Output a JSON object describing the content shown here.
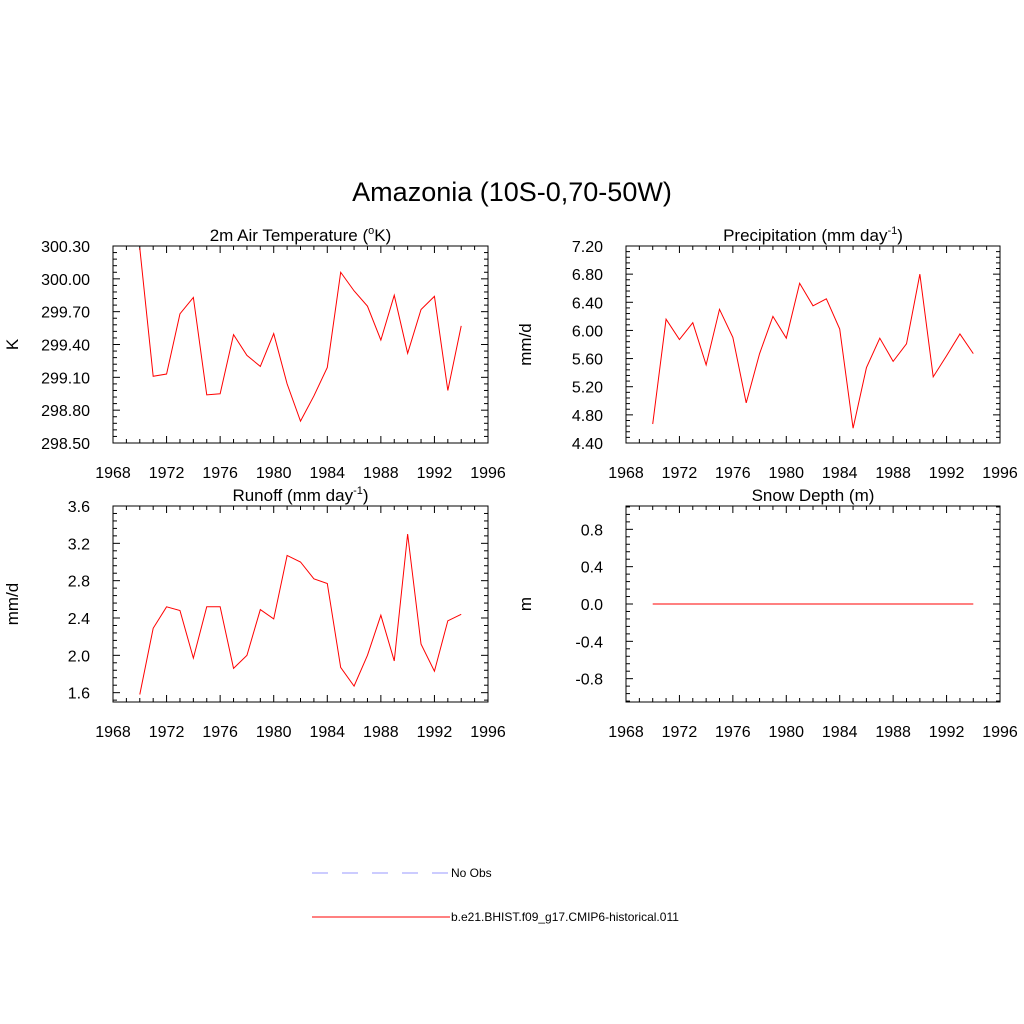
{
  "figure": {
    "title": "Amazonia (10S-0,70-50W)"
  },
  "colors": {
    "model_line": "#ff0000",
    "obs_line": "#9999ff",
    "axis": "#000000"
  },
  "chart_data": [
    {
      "type": "line",
      "title": "2m Air Temperature",
      "title_unit_parts": [
        "(",
        "o",
        "K)"
      ],
      "ylabel": "K",
      "xlim": [
        1968,
        1996
      ],
      "ylim": [
        298.5,
        300.3
      ],
      "xticks": [
        1968,
        1972,
        1976,
        1980,
        1984,
        1988,
        1992,
        1996
      ],
      "yticks": [
        "298.50",
        "298.80",
        "299.10",
        "299.40",
        "299.70",
        "300.00",
        "300.30"
      ],
      "series": [
        {
          "name": "b.e21.BHIST.f09_g17.CMIP6-historical.011",
          "x": [
            1970,
            1971,
            1972,
            1973,
            1974,
            1975,
            1976,
            1977,
            1978,
            1979,
            1980,
            1981,
            1982,
            1983,
            1984,
            1985,
            1986,
            1987,
            1988,
            1989,
            1990,
            1991,
            1992,
            1993,
            1994
          ],
          "y": [
            300.28,
            299.11,
            299.13,
            299.68,
            299.83,
            298.94,
            298.95,
            299.49,
            299.3,
            299.2,
            299.5,
            299.04,
            298.7,
            298.93,
            299.19,
            300.06,
            299.89,
            299.75,
            299.44,
            299.85,
            299.32,
            299.72,
            299.84,
            298.98,
            299.57
          ]
        }
      ]
    },
    {
      "type": "line",
      "title": "Precipitation",
      "title_unit_parts": [
        "(mm day",
        "-1",
        ")"
      ],
      "ylabel": "mm/d",
      "xlim": [
        1968,
        1996
      ],
      "ylim": [
        4.4,
        7.2
      ],
      "xticks": [
        1968,
        1972,
        1976,
        1980,
        1984,
        1988,
        1992,
        1996
      ],
      "yticks": [
        "4.40",
        "4.80",
        "5.20",
        "5.60",
        "6.00",
        "6.40",
        "6.80",
        "7.20"
      ],
      "series": [
        {
          "name": "b.e21.BHIST.f09_g17.CMIP6-historical.011",
          "x": [
            1970,
            1971,
            1972,
            1973,
            1974,
            1975,
            1976,
            1977,
            1978,
            1979,
            1980,
            1981,
            1982,
            1983,
            1984,
            1985,
            1986,
            1987,
            1988,
            1989,
            1990,
            1991,
            1992,
            1993,
            1994
          ],
          "y": [
            4.67,
            6.16,
            5.87,
            6.11,
            5.51,
            6.3,
            5.9,
            4.97,
            5.67,
            6.2,
            5.89,
            6.67,
            6.35,
            6.45,
            6.02,
            4.61,
            5.47,
            5.89,
            5.56,
            5.81,
            6.8,
            5.34,
            5.64,
            5.95,
            5.67
          ]
        }
      ]
    },
    {
      "type": "line",
      "title": "Runoff",
      "title_unit_parts": [
        "(mm day",
        "-1",
        ")"
      ],
      "ylabel": "mm/d",
      "xlim": [
        1968,
        1996
      ],
      "ylim": [
        1.5,
        3.6
      ],
      "xticks": [
        1968,
        1972,
        1976,
        1980,
        1984,
        1988,
        1992,
        1996
      ],
      "yticks": [
        "1.6",
        "2.0",
        "2.4",
        "2.8",
        "3.2",
        "3.6"
      ],
      "series": [
        {
          "name": "b.e21.BHIST.f09_g17.CMIP6-historical.011",
          "x": [
            1970,
            1971,
            1972,
            1973,
            1974,
            1975,
            1976,
            1977,
            1978,
            1979,
            1980,
            1981,
            1982,
            1983,
            1984,
            1985,
            1986,
            1987,
            1988,
            1989,
            1990,
            1991,
            1992,
            1993,
            1994
          ],
          "y": [
            1.58,
            2.29,
            2.52,
            2.48,
            1.97,
            2.52,
            2.52,
            1.86,
            2.0,
            2.49,
            2.39,
            3.07,
            3.0,
            2.82,
            2.77,
            1.87,
            1.67,
            2.0,
            2.43,
            1.94,
            3.3,
            2.12,
            1.83,
            2.37,
            2.44
          ]
        }
      ]
    },
    {
      "type": "line",
      "title": "Snow Depth",
      "title_unit_parts": [
        "(m)",
        "",
        ""
      ],
      "ylabel": "m",
      "xlim": [
        1968,
        1996
      ],
      "ylim": [
        -1.05,
        1.05
      ],
      "xticks": [
        1968,
        1972,
        1976,
        1980,
        1984,
        1988,
        1992,
        1996
      ],
      "yticks": [
        "-0.8",
        "-0.4",
        "0.0",
        "0.4",
        "0.8"
      ],
      "series": [
        {
          "name": "b.e21.BHIST.f09_g17.CMIP6-historical.011",
          "x": [
            1970,
            1971,
            1972,
            1973,
            1974,
            1975,
            1976,
            1977,
            1978,
            1979,
            1980,
            1981,
            1982,
            1983,
            1984,
            1985,
            1986,
            1987,
            1988,
            1989,
            1990,
            1991,
            1992,
            1993,
            1994
          ],
          "y": [
            0,
            0,
            0,
            0,
            0,
            0,
            0,
            0,
            0,
            0,
            0,
            0,
            0,
            0,
            0,
            0,
            0,
            0,
            0,
            0,
            0,
            0,
            0,
            0,
            0
          ]
        }
      ]
    }
  ],
  "legend": {
    "items": [
      {
        "label": "No Obs",
        "style": "dashed",
        "color": "#9999ff"
      },
      {
        "label": "b.e21.BHIST.f09_g17.CMIP6-historical.011",
        "style": "solid",
        "color": "#ff0000"
      }
    ]
  }
}
